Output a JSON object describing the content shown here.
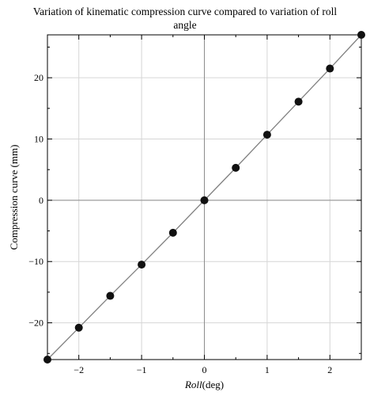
{
  "chart_data": {
    "type": "line",
    "title": "Variation of kinematic compression curve compared to variation of roll angle",
    "title_lines": [
      "Variation of kinematic compression curve compared to variation of roll",
      "angle"
    ],
    "xlabel": "Roll(deg)",
    "xlabel_italic": "Roll",
    "xlabel_paren": "(deg)",
    "ylabel": "Compression curve (mm)",
    "xlim": [
      -2.5,
      2.5
    ],
    "ylim": [
      -26,
      27
    ],
    "xticks": [
      -2,
      -1,
      0,
      1,
      2
    ],
    "xtick_labels": [
      "−2",
      "−1",
      "0",
      "1",
      "2"
    ],
    "yticks": [
      -20,
      -10,
      0,
      10,
      20
    ],
    "ytick_labels": [
      "−20",
      "−10",
      "0",
      "10",
      "20"
    ],
    "grid": true,
    "series": [
      {
        "x": [
          -2.5,
          -2.0,
          -1.5,
          -1.0,
          -0.5,
          0.0,
          0.5,
          1.0,
          1.5,
          2.0,
          2.5
        ],
        "y": [
          -26.0,
          -20.8,
          -15.6,
          -10.5,
          -5.3,
          0.0,
          5.3,
          10.7,
          16.1,
          21.5,
          27.0
        ],
        "line_color": "#808080",
        "marker_color": "#111111"
      }
    ]
  }
}
